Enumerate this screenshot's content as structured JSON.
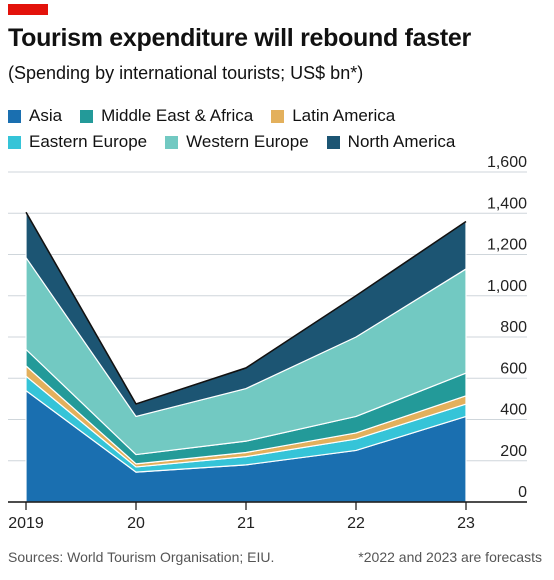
{
  "header": {
    "title": "Tourism expenditure will rebound faster",
    "subtitle": "(Spending by international tourists; US$ bn*)"
  },
  "legend": [
    {
      "label": "Asia",
      "color": "#1a6fb0"
    },
    {
      "label": "Middle East & Africa",
      "color": "#239a99"
    },
    {
      "label": "Latin America",
      "color": "#e3b05c"
    },
    {
      "label": "Eastern Europe",
      "color": "#35c4d8"
    },
    {
      "label": "Western Europe",
      "color": "#72c9c2"
    },
    {
      "label": "North America",
      "color": "#1c5573"
    }
  ],
  "footer": {
    "source": "Sources: World Tourism Organisation; EIU.",
    "note": "*2022 and 2023 are forecasts"
  },
  "chart_data": {
    "type": "area",
    "stacked": true,
    "x": [
      "2019",
      "20",
      "21",
      "22",
      "23"
    ],
    "y_ticks": [
      "0",
      "200",
      "400",
      "600",
      "800",
      "1,000",
      "1,200",
      "1,400",
      "1,600"
    ],
    "ylim": [
      0,
      1600
    ],
    "y_axis_side": "right",
    "grid": true,
    "series": [
      {
        "name": "Asia",
        "color": "#1a6fb0",
        "values": [
          540,
          145,
          180,
          250,
          415
        ]
      },
      {
        "name": "Eastern Europe",
        "color": "#35c4d8",
        "values": [
          70,
          25,
          40,
          55,
          60
        ]
      },
      {
        "name": "Latin America",
        "color": "#e3b05c",
        "values": [
          50,
          15,
          20,
          30,
          40
        ]
      },
      {
        "name": "Middle East & Africa",
        "color": "#239a99",
        "values": [
          80,
          45,
          55,
          80,
          110
        ]
      },
      {
        "name": "Western Europe",
        "color": "#72c9c2",
        "values": [
          445,
          185,
          255,
          385,
          505
        ]
      },
      {
        "name": "North America",
        "color": "#1c5573",
        "values": [
          220,
          60,
          100,
          200,
          230
        ]
      }
    ]
  }
}
